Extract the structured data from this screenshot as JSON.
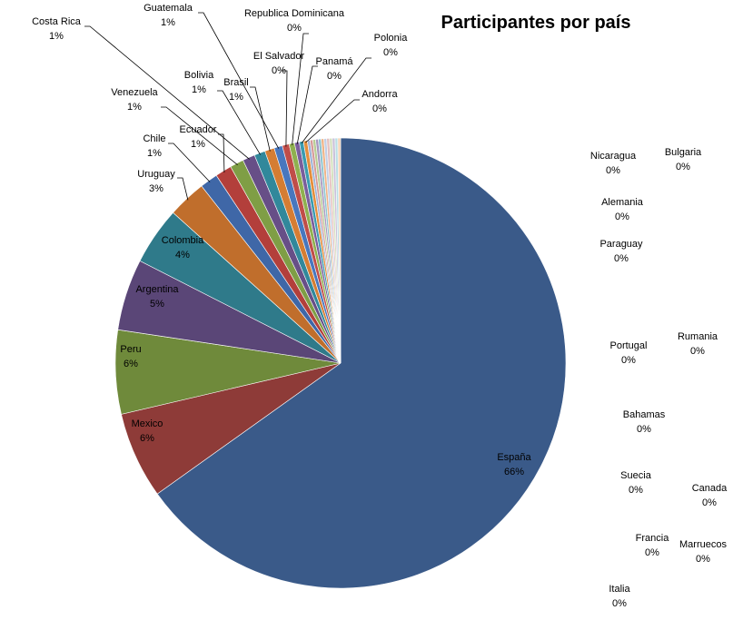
{
  "chart_data": {
    "type": "pie",
    "title": "Participantes por país",
    "slices": [
      {
        "label": "España",
        "value": 66,
        "color": "#3A5A89",
        "text": "66%"
      },
      {
        "label": "Mexico",
        "value": 6.3,
        "color": "#8E3B38",
        "text": "6%"
      },
      {
        "label": "Peru",
        "value": 6.1,
        "color": "#6F8A3B",
        "text": "6%"
      },
      {
        "label": "Argentina",
        "value": 5.2,
        "color": "#5A4677",
        "text": "5%"
      },
      {
        "label": "Colombia",
        "value": 4.2,
        "color": "#2F7A8A",
        "text": "4%"
      },
      {
        "label": "Uruguay",
        "value": 2.8,
        "color": "#C06E2C",
        "text": "3%"
      },
      {
        "label": "Chile",
        "value": 1.3,
        "color": "#3F67A7",
        "text": "1%"
      },
      {
        "label": "Ecuador",
        "value": 1.2,
        "color": "#B33F3B",
        "text": "1%"
      },
      {
        "label": "Venezuela",
        "value": 1.0,
        "color": "#7F9E45",
        "text": "1%"
      },
      {
        "label": "Costa Rica",
        "value": 0.9,
        "color": "#674F87",
        "text": "1%"
      },
      {
        "label": "Bolivia",
        "value": 0.8,
        "color": "#31889B",
        "text": "1%"
      },
      {
        "label": "Brasil",
        "value": 0.7,
        "color": "#D57D33",
        "text": "1%"
      },
      {
        "label": "Guatemala",
        "value": 0.6,
        "color": "#4877BE",
        "text": "1%"
      },
      {
        "label": "El Salvador",
        "value": 0.5,
        "color": "#C04D49",
        "text": "0%"
      },
      {
        "label": "Republica Dominicana",
        "value": 0.4,
        "color": "#8FB04F",
        "text": "0%"
      },
      {
        "label": "Panamá",
        "value": 0.35,
        "color": "#7A5E9C",
        "text": "0%"
      },
      {
        "label": "Polonia",
        "value": 0.3,
        "color": "#3A9BB0",
        "text": "0%"
      },
      {
        "label": "Andorra",
        "value": 0.28,
        "color": "#E58E3B",
        "text": "0%"
      },
      {
        "label": "Nicaragua",
        "value": 0.2,
        "color": "#9DB3D6",
        "text": "0%"
      },
      {
        "label": "Bulgaria",
        "value": 0.2,
        "color": "#D69A99",
        "text": "0%"
      },
      {
        "label": "Alemania",
        "value": 0.2,
        "color": "#B8CD95",
        "text": "0%"
      },
      {
        "label": "Paraguay",
        "value": 0.2,
        "color": "#A898C0",
        "text": "0%"
      },
      {
        "label": "Portugal",
        "value": 0.2,
        "color": "#8FC5D1",
        "text": "0%"
      },
      {
        "label": "Rumania",
        "value": 0.2,
        "color": "#F0B487",
        "text": "0%"
      },
      {
        "label": "Bahamas",
        "value": 0.2,
        "color": "#C2CFE6",
        "text": "0%"
      },
      {
        "label": "Suecia",
        "value": 0.2,
        "color": "#E5C0BF",
        "text": "0%"
      },
      {
        "label": "Canada",
        "value": 0.2,
        "color": "#D4E1BE",
        "text": "0%"
      },
      {
        "label": "Francia",
        "value": 0.2,
        "color": "#CBC2DA",
        "text": "0%"
      },
      {
        "label": "Marruecos",
        "value": 0.2,
        "color": "#BADFE6",
        "text": "0%"
      },
      {
        "label": "Italia",
        "value": 0.2,
        "color": "#F5D2B5",
        "text": "0%"
      }
    ]
  }
}
